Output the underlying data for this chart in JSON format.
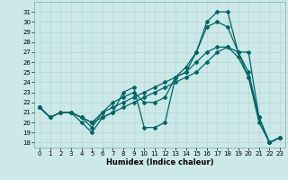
{
  "xlabel": "Humidex (Indice chaleur)",
  "bg_color": "#cce8e8",
  "line_color": "#006666",
  "grid_color": "#b8d8d8",
  "xlim": [
    -0.5,
    23.5
  ],
  "ylim": [
    17.5,
    32.0
  ],
  "yticks": [
    18,
    19,
    20,
    21,
    22,
    23,
    24,
    25,
    26,
    27,
    28,
    29,
    30,
    31
  ],
  "xticks": [
    0,
    1,
    2,
    3,
    4,
    5,
    6,
    7,
    8,
    9,
    10,
    11,
    12,
    13,
    14,
    15,
    16,
    17,
    18,
    19,
    20,
    21,
    22,
    23
  ],
  "series": [
    {
      "x": [
        0,
        1,
        2,
        3,
        4,
        5,
        6,
        7,
        8,
        9,
        10,
        11,
        12,
        13,
        14,
        15,
        16,
        17,
        18,
        19,
        20,
        21,
        22,
        23
      ],
      "y": [
        21.5,
        20.5,
        21.0,
        21.0,
        20.0,
        19.0,
        20.5,
        21.0,
        23.0,
        23.5,
        19.5,
        19.5,
        20.0,
        24.5,
        25.0,
        27.0,
        30.0,
        31.0,
        31.0,
        27.0,
        24.5,
        20.5,
        18.0,
        18.5
      ]
    },
    {
      "x": [
        0,
        1,
        2,
        3,
        4,
        5,
        6,
        7,
        8,
        9,
        10,
        11,
        12,
        13,
        14,
        15,
        16,
        17,
        18,
        19,
        20,
        21,
        22,
        23
      ],
      "y": [
        21.5,
        20.5,
        21.0,
        21.0,
        20.5,
        19.5,
        21.0,
        22.0,
        22.5,
        23.0,
        22.0,
        22.0,
        22.5,
        24.5,
        25.5,
        27.0,
        29.5,
        30.0,
        29.5,
        27.0,
        25.0,
        20.5,
        18.0,
        18.5
      ]
    },
    {
      "x": [
        0,
        1,
        2,
        3,
        4,
        5,
        6,
        7,
        8,
        9,
        10,
        11,
        12,
        13,
        14,
        15,
        16,
        17,
        18,
        19,
        20,
        21,
        22,
        23
      ],
      "y": [
        21.5,
        20.5,
        21.0,
        21.0,
        20.5,
        20.0,
        21.0,
        21.5,
        22.0,
        22.5,
        23.0,
        23.5,
        24.0,
        24.5,
        25.0,
        26.0,
        27.0,
        27.5,
        27.5,
        27.0,
        27.0,
        20.5,
        18.0,
        18.5
      ]
    },
    {
      "x": [
        0,
        1,
        2,
        3,
        4,
        5,
        6,
        7,
        8,
        9,
        10,
        11,
        12,
        13,
        14,
        15,
        16,
        17,
        18,
        19,
        20,
        21,
        22,
        23
      ],
      "y": [
        21.5,
        20.5,
        21.0,
        21.0,
        20.5,
        20.0,
        20.5,
        21.0,
        21.5,
        22.0,
        22.5,
        23.0,
        23.5,
        24.0,
        24.5,
        25.0,
        26.0,
        27.0,
        27.5,
        26.5,
        24.5,
        20.0,
        18.0,
        18.5
      ]
    }
  ]
}
